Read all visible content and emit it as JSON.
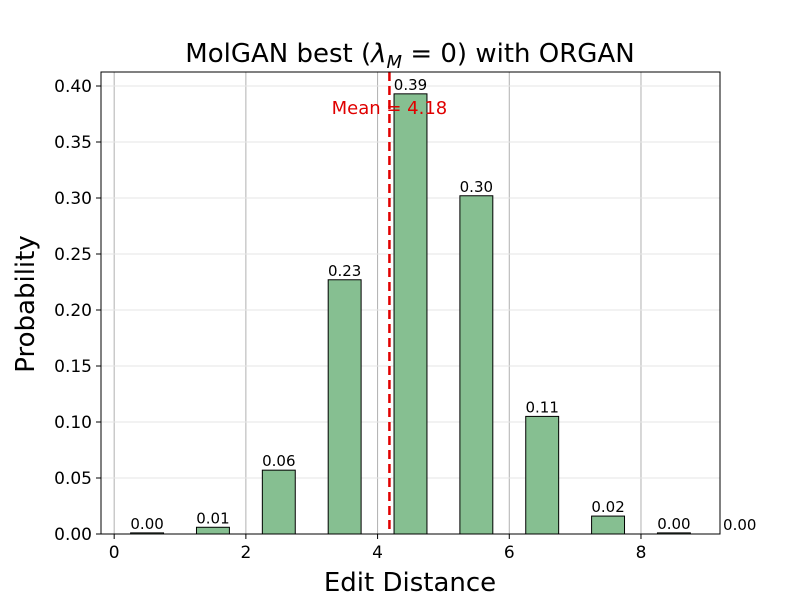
{
  "chart_data": {
    "type": "bar",
    "title": "MolGAN best (λM = 0) with ORGAN",
    "xlabel": "Edit Distance",
    "ylabel": "Probability",
    "xlim": [
      -0.2,
      9.2
    ],
    "ylim": [
      0,
      0.4125
    ],
    "x_ticks": [
      0,
      2,
      4,
      6,
      8
    ],
    "y_ticks": [
      0.0,
      0.05,
      0.1,
      0.15,
      0.2,
      0.25,
      0.3,
      0.35,
      0.4
    ],
    "x": [
      0,
      1,
      2,
      3,
      4,
      5,
      6,
      7,
      8,
      9
    ],
    "values": [
      0.001,
      0.006,
      0.057,
      0.227,
      0.393,
      0.302,
      0.105,
      0.016,
      0.001,
      0.0
    ],
    "data_labels": [
      "0.00",
      "0.01",
      "0.06",
      "0.23",
      "0.39",
      "0.30",
      "0.11",
      "0.02",
      "0.00",
      "0.00"
    ],
    "mean": 4.18,
    "mean_label": "Mean = 4.18",
    "grid": "vertical",
    "colors": {
      "bar_fill": "#86bf91",
      "bar_edge": "#000000",
      "mean_line": "#e00000",
      "grid": "#b0b0b0"
    }
  }
}
